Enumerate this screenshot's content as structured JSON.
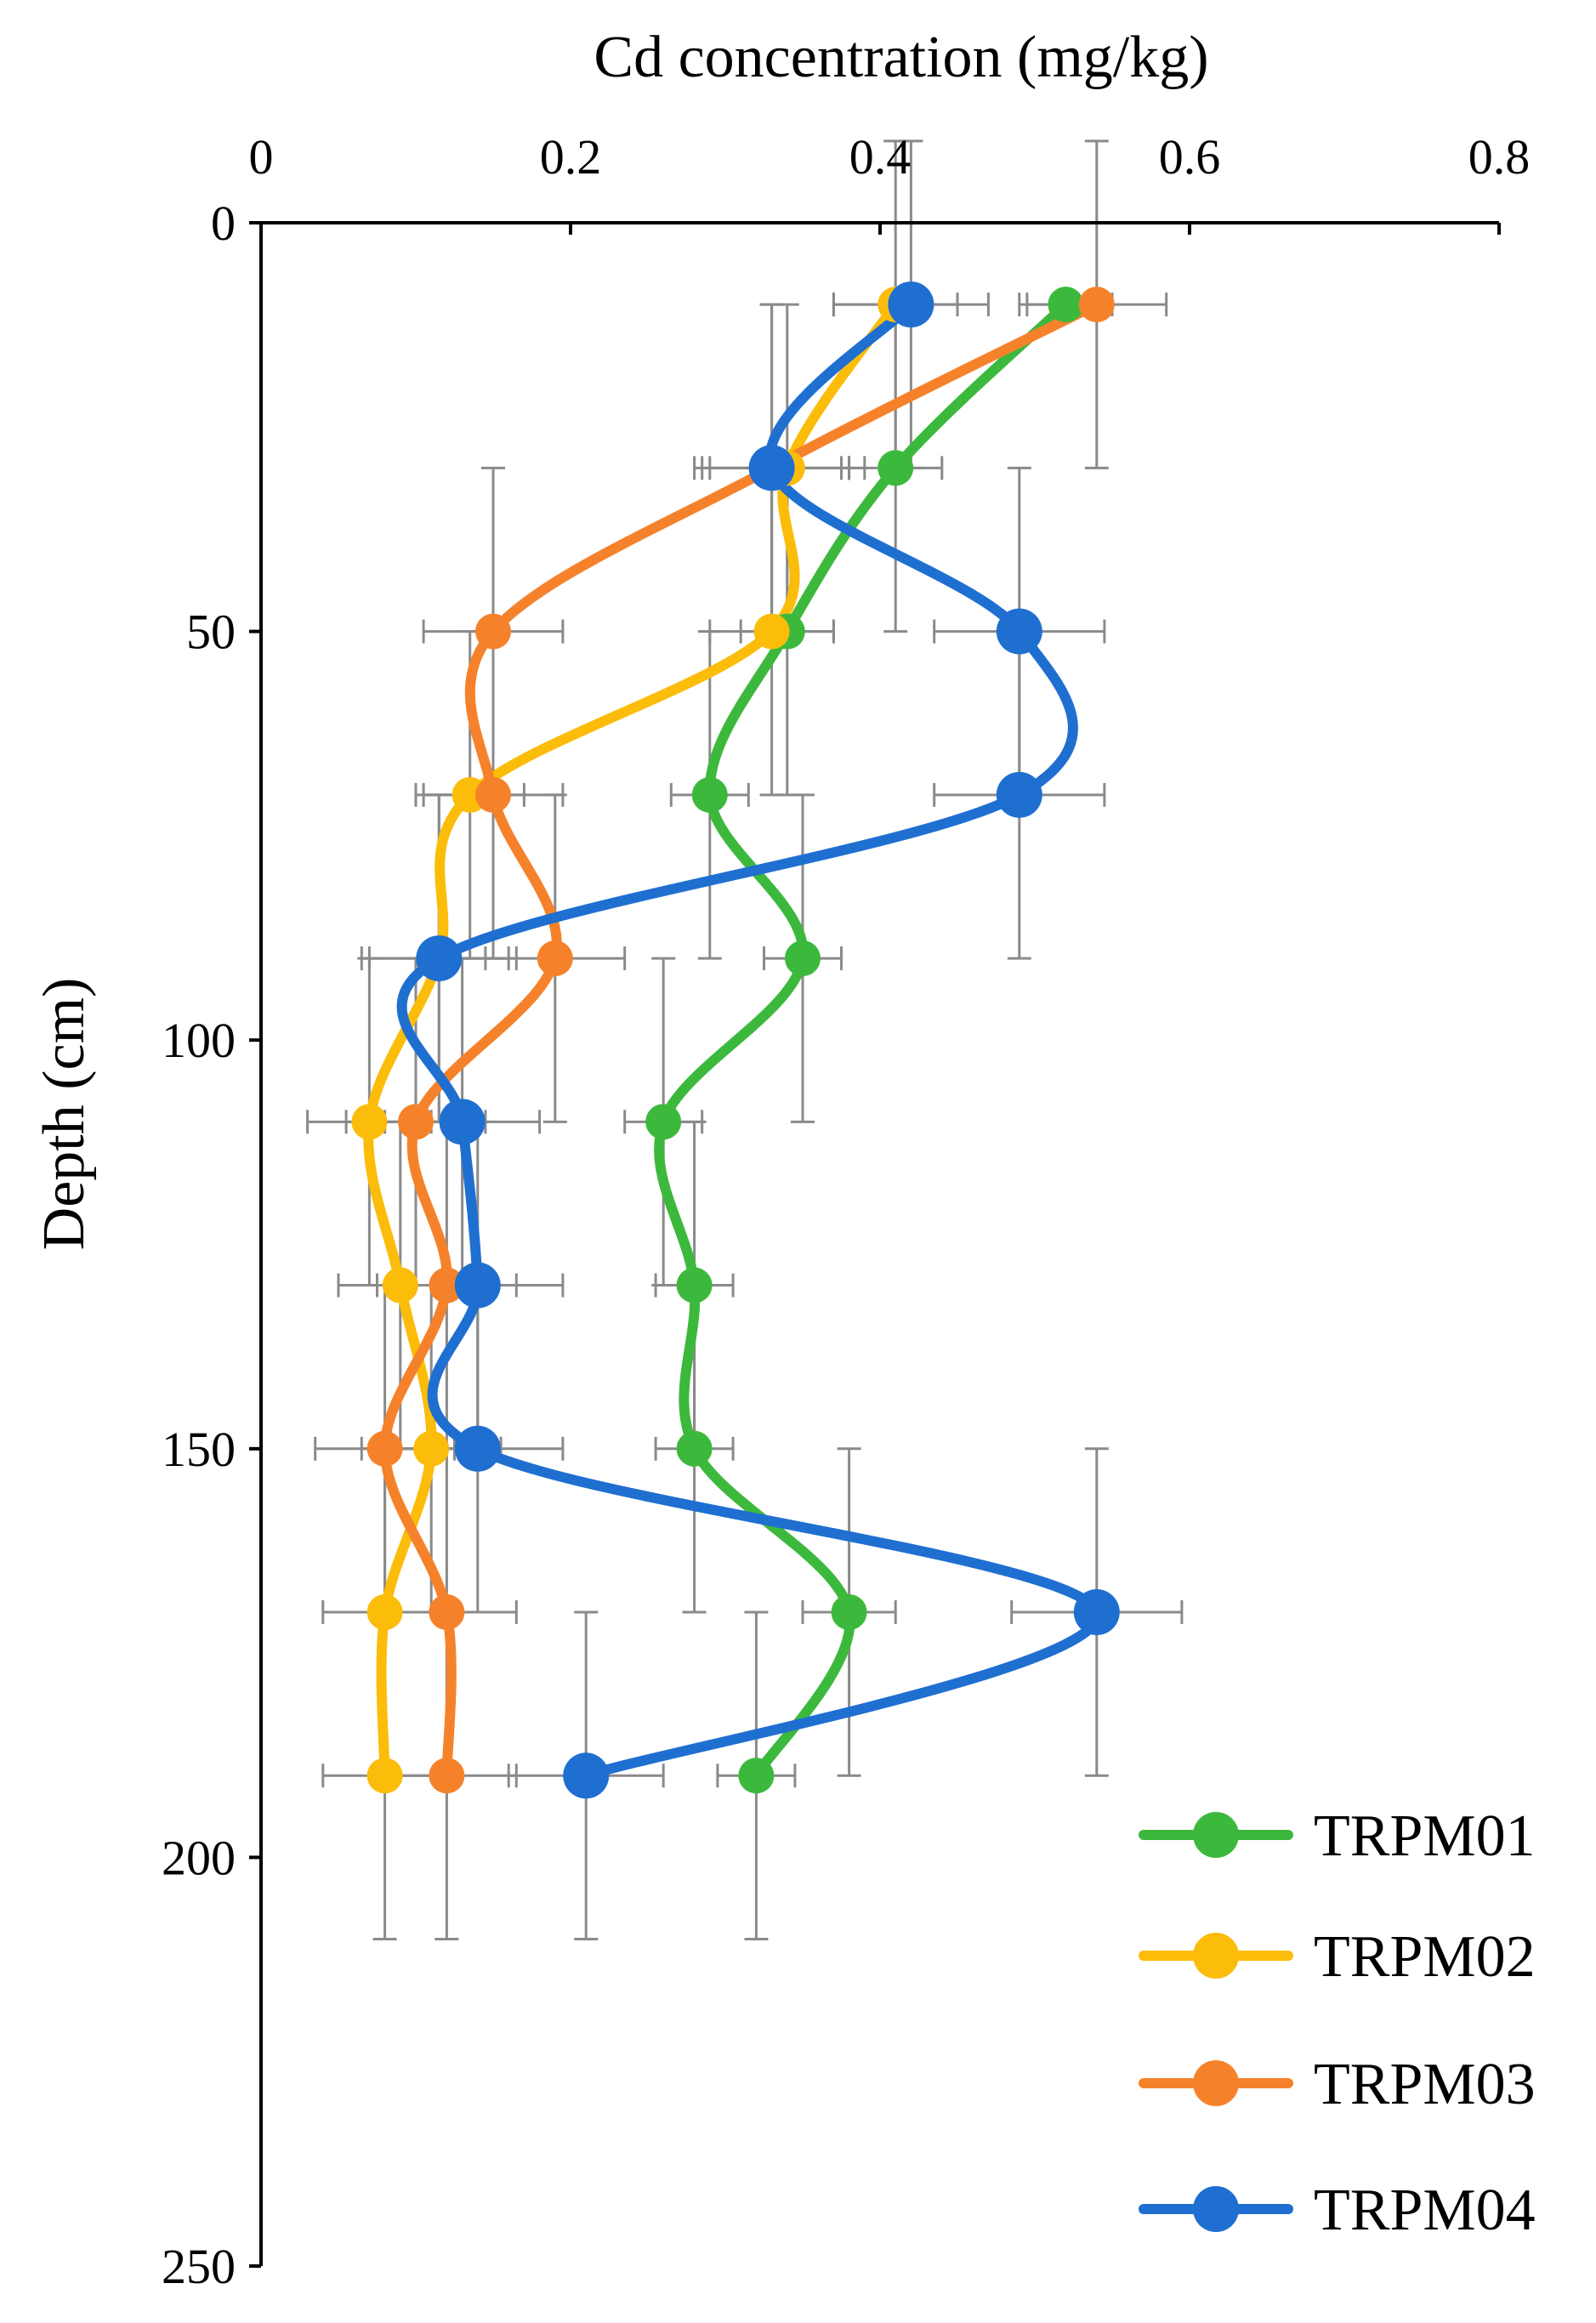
{
  "chart_data": {
    "type": "line",
    "orientation": "vertical-profile",
    "title": "",
    "xlabel": "Cd concentration (mg/kg)",
    "ylabel": "Depth (cm)",
    "xlim": [
      0,
      0.8
    ],
    "ylim": [
      0,
      250
    ],
    "x_ticks": [
      "0",
      "0.2",
      "0.4",
      "0.6",
      "0.8"
    ],
    "y_ticks": [
      "0",
      "50",
      "100",
      "150",
      "200",
      "250"
    ],
    "x_tick_values": [
      0,
      0.2,
      0.4,
      0.6,
      0.8
    ],
    "y_tick_values": [
      0,
      50,
      100,
      150,
      200,
      250
    ],
    "x_axis_position": "top",
    "y_axis_inverted": true,
    "grid": false,
    "legend_position": "bottom-right",
    "depths": [
      10,
      30,
      50,
      70,
      90,
      110,
      130,
      150,
      170,
      190
    ],
    "series": [
      {
        "name": "TRPM01",
        "color": "#3cb93c",
        "values": [
          0.52,
          0.41,
          0.34,
          0.29,
          0.35,
          0.26,
          0.28,
          0.28,
          0.38,
          0.32
        ],
        "x_err": [
          0.03,
          0.03,
          0.03,
          0.025,
          0.025,
          0.025,
          0.025,
          0.025,
          0.03,
          0.025
        ],
        "y_err": [
          0,
          20,
          20,
          20,
          20,
          20,
          20,
          20,
          20,
          20
        ]
      },
      {
        "name": "TRPM02",
        "color": "#fbbc0a",
        "values": [
          0.41,
          0.34,
          0.33,
          0.135,
          0.115,
          0.07,
          0.09,
          0.11,
          0.08,
          0.08
        ],
        "x_err": [
          0.04,
          0.05,
          0.04,
          0.035,
          0.045,
          0.04,
          0.04,
          0.045,
          0.04,
          0.04
        ],
        "y_err": [
          20,
          20,
          20,
          20,
          20,
          20,
          20,
          20,
          20,
          20
        ]
      },
      {
        "name": "TRPM03",
        "color": "#f5822b",
        "values": [
          0.54,
          0.33,
          0.15,
          0.15,
          0.19,
          0.1,
          0.12,
          0.08,
          0.12,
          0.12
        ],
        "x_err": [
          0.045,
          0.045,
          0.045,
          0.045,
          0.045,
          0.045,
          0.045,
          0.045,
          0.045,
          0.045
        ],
        "y_err": [
          20,
          20,
          20,
          20,
          20,
          20,
          20,
          20,
          20,
          20
        ]
      },
      {
        "name": "TRPM04",
        "color": "#1f6fd1",
        "values": [
          0.42,
          0.33,
          0.49,
          0.49,
          0.115,
          0.13,
          0.14,
          0.14,
          0.54,
          0.21
        ],
        "x_err": [
          0.05,
          0.05,
          0.055,
          0.055,
          0.05,
          0.05,
          0.055,
          0.055,
          0.055,
          0.05
        ],
        "y_err": [
          20,
          20,
          20,
          20,
          20,
          20,
          20,
          20,
          20,
          20
        ]
      }
    ]
  }
}
